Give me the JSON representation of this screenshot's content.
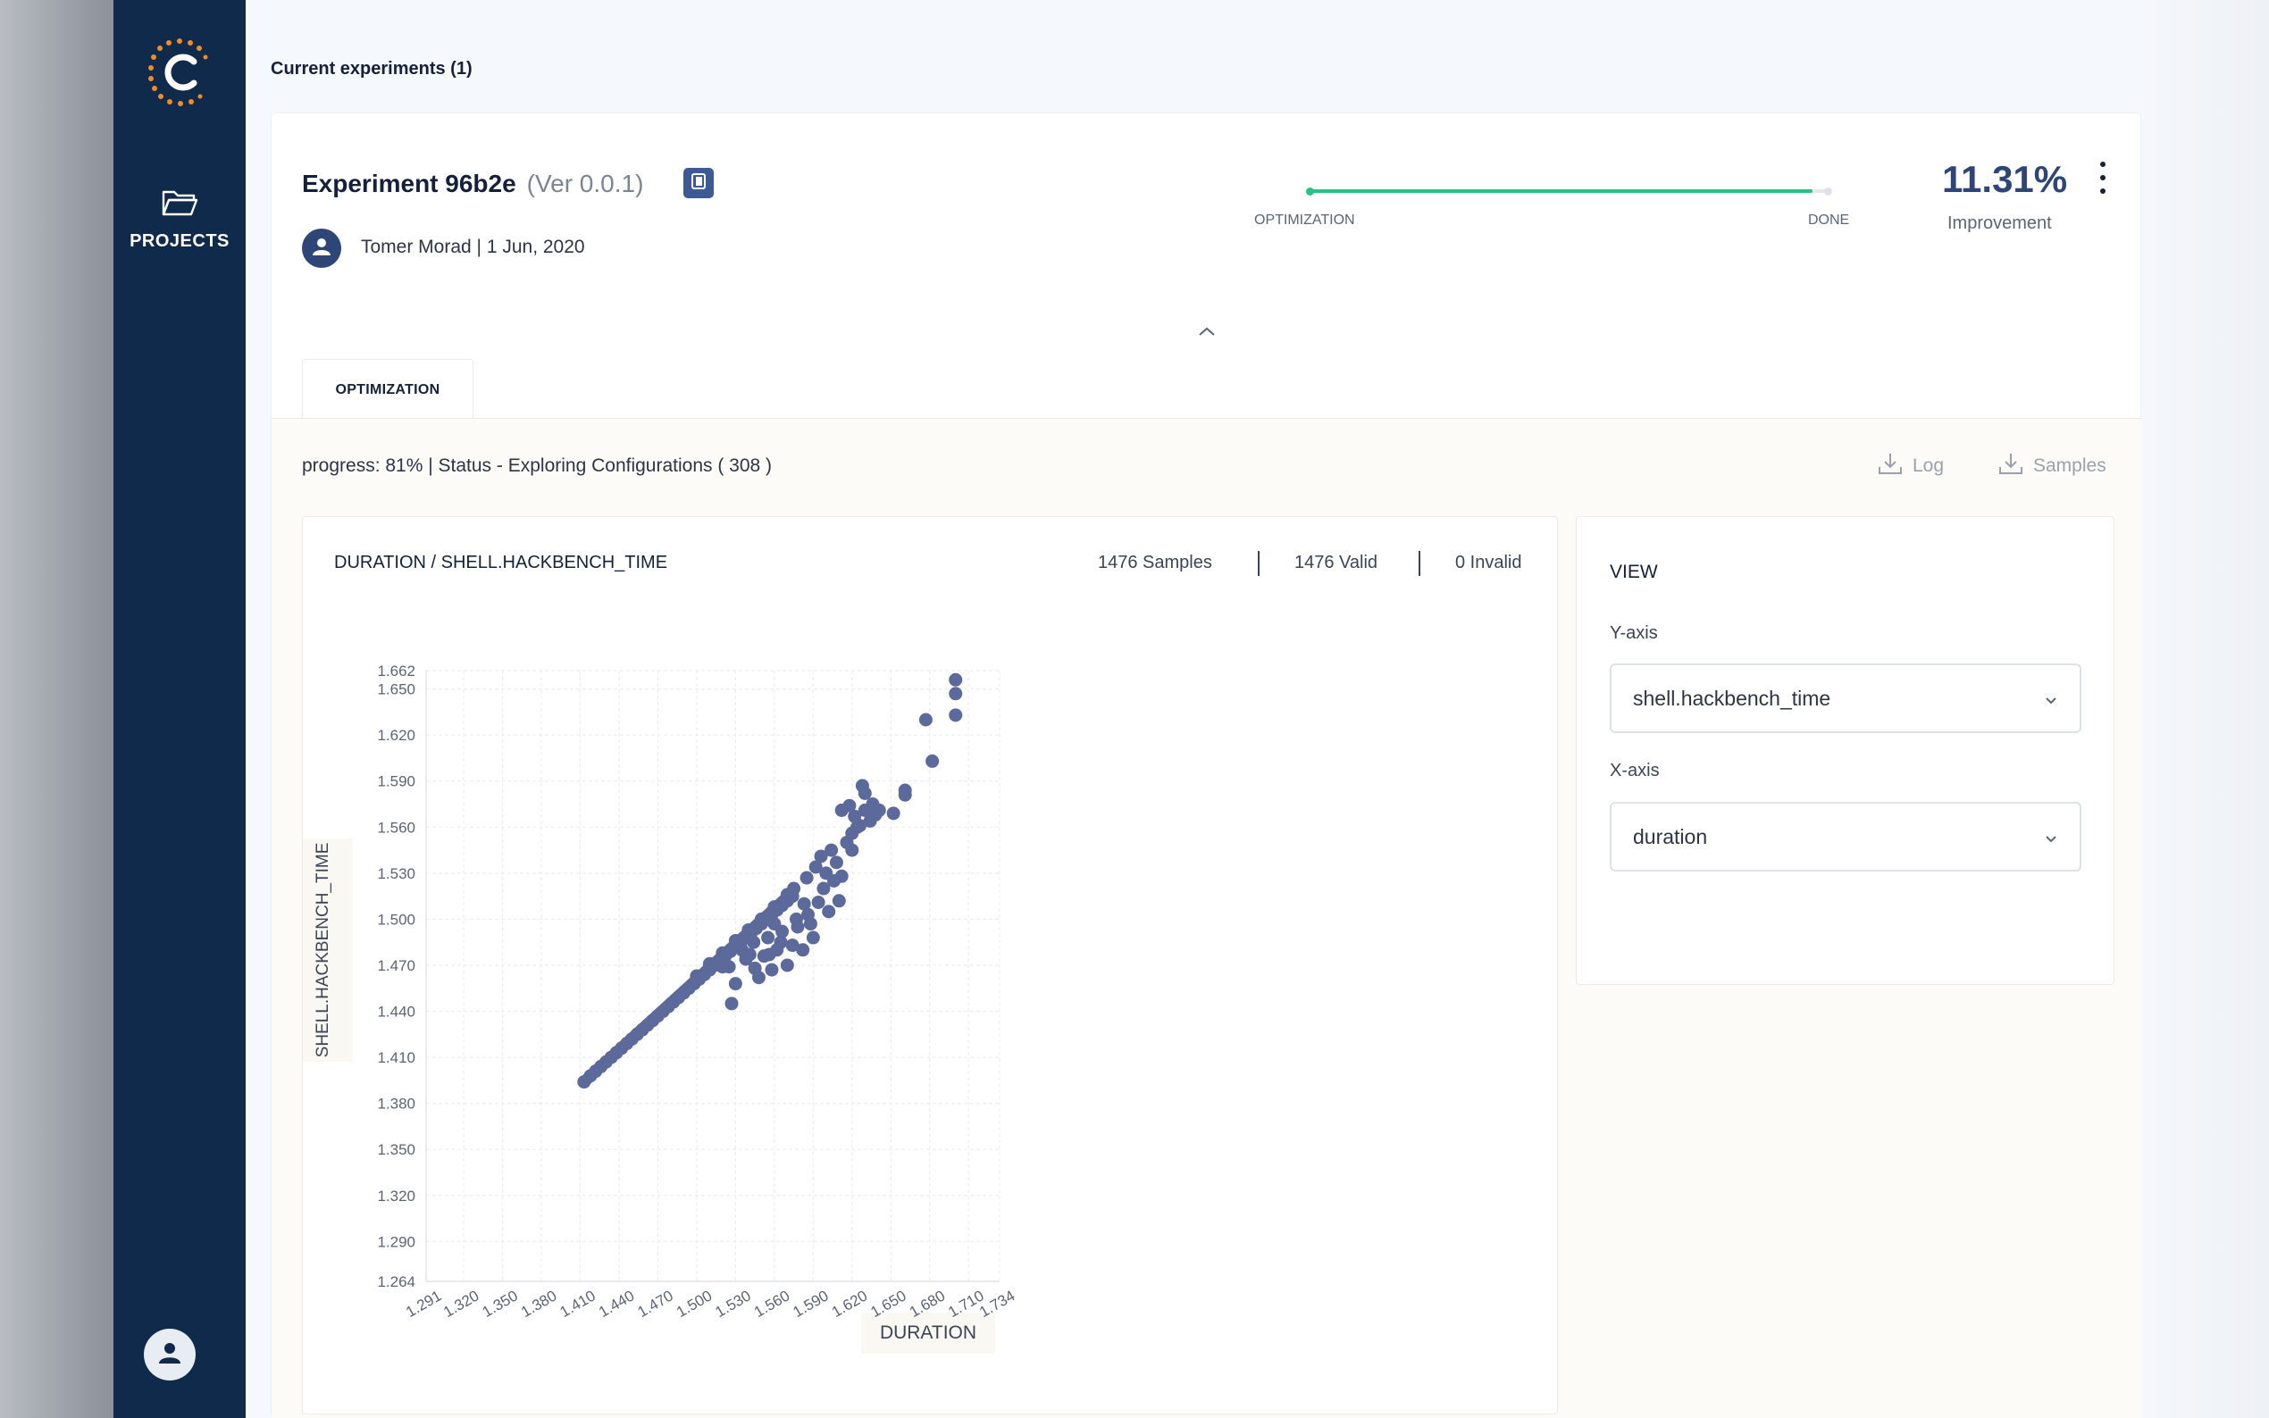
{
  "sidebar": {
    "nav": [
      {
        "label": "PROJECTS",
        "icon": "folder-icon"
      }
    ],
    "user_icon": "user-icon",
    "logo_icon": "c-logo-icon",
    "colors": {
      "bg": "#0f2a4a",
      "logo_accent": "#f28c28"
    }
  },
  "header": {
    "section_title": "Current experiments (1)"
  },
  "experiment": {
    "name": "Experiment 96b2e",
    "version": "(Ver 0.0.1)",
    "author_line": "Tomer Morad | 1 Jun, 2020",
    "stage_start": "OPTIMIZATION",
    "stage_end": "DONE",
    "stage_progress": 0.97,
    "improvement_value": "11.31%",
    "improvement_label": "Improvement",
    "colors": {
      "progress": "#26c281",
      "primary": "#2d4677"
    }
  },
  "tabs": [
    {
      "label": "OPTIMIZATION",
      "active": true
    }
  ],
  "status": {
    "progress_text": "progress: 81% | Status - Exploring Configurations ( 308 )",
    "log_label": "Log",
    "samples_label": "Samples"
  },
  "chart_panel": {
    "title": "DURATION / SHELL.HACKBENCH_TIME",
    "samples": "1476 Samples",
    "valid": "1476 Valid",
    "invalid": "0 Invalid"
  },
  "view_panel": {
    "title": "VIEW",
    "y_label": "Y-axis",
    "y_value": "shell.hackbench_time",
    "x_label": "X-axis",
    "x_value": "duration"
  },
  "chart_data": {
    "type": "scatter",
    "title": "",
    "xlabel": "DURATION",
    "ylabel": "SHELL.HACKBENCH_TIME",
    "xlim": [
      1.291,
      1.734
    ],
    "ylim": [
      1.264,
      1.662
    ],
    "x_ticks": [
      "1.291",
      "1.320",
      "1.350",
      "1.380",
      "1.410",
      "1.440",
      "1.470",
      "1.500",
      "1.530",
      "1.560",
      "1.590",
      "1.620",
      "1.650",
      "1.680",
      "1.710",
      "1.734"
    ],
    "y_ticks": [
      "1.264",
      "1.290",
      "1.320",
      "1.350",
      "1.380",
      "1.410",
      "1.440",
      "1.470",
      "1.500",
      "1.530",
      "1.560",
      "1.590",
      "1.620",
      "1.650",
      "1.662"
    ],
    "grid": true,
    "point_color": "#5b6a9a",
    "points": [
      {
        "x": 1.413,
        "y": 1.394
      },
      {
        "x": 1.418,
        "y": 1.398
      },
      {
        "x": 1.422,
        "y": 1.401
      },
      {
        "x": 1.426,
        "y": 1.404
      },
      {
        "x": 1.43,
        "y": 1.407
      },
      {
        "x": 1.434,
        "y": 1.41
      },
      {
        "x": 1.438,
        "y": 1.413
      },
      {
        "x": 1.442,
        "y": 1.416
      },
      {
        "x": 1.446,
        "y": 1.419
      },
      {
        "x": 1.45,
        "y": 1.422
      },
      {
        "x": 1.454,
        "y": 1.425
      },
      {
        "x": 1.458,
        "y": 1.428
      },
      {
        "x": 1.462,
        "y": 1.431
      },
      {
        "x": 1.466,
        "y": 1.434
      },
      {
        "x": 1.47,
        "y": 1.437
      },
      {
        "x": 1.474,
        "y": 1.44
      },
      {
        "x": 1.478,
        "y": 1.443
      },
      {
        "x": 1.482,
        "y": 1.446
      },
      {
        "x": 1.486,
        "y": 1.449
      },
      {
        "x": 1.49,
        "y": 1.452
      },
      {
        "x": 1.494,
        "y": 1.455
      },
      {
        "x": 1.498,
        "y": 1.458
      },
      {
        "x": 1.502,
        "y": 1.461
      },
      {
        "x": 1.506,
        "y": 1.464
      },
      {
        "x": 1.51,
        "y": 1.467
      },
      {
        "x": 1.514,
        "y": 1.47
      },
      {
        "x": 1.518,
        "y": 1.473
      },
      {
        "x": 1.522,
        "y": 1.476
      },
      {
        "x": 1.526,
        "y": 1.479
      },
      {
        "x": 1.53,
        "y": 1.482
      },
      {
        "x": 1.534,
        "y": 1.485
      },
      {
        "x": 1.538,
        "y": 1.488
      },
      {
        "x": 1.542,
        "y": 1.491
      },
      {
        "x": 1.546,
        "y": 1.494
      },
      {
        "x": 1.55,
        "y": 1.497
      },
      {
        "x": 1.554,
        "y": 1.5
      },
      {
        "x": 1.558,
        "y": 1.503
      },
      {
        "x": 1.562,
        "y": 1.506
      },
      {
        "x": 1.566,
        "y": 1.509
      },
      {
        "x": 1.57,
        "y": 1.512
      },
      {
        "x": 1.574,
        "y": 1.515
      },
      {
        "x": 1.5,
        "y": 1.463
      },
      {
        "x": 1.51,
        "y": 1.471
      },
      {
        "x": 1.52,
        "y": 1.478
      },
      {
        "x": 1.53,
        "y": 1.486
      },
      {
        "x": 1.54,
        "y": 1.493
      },
      {
        "x": 1.55,
        "y": 1.5
      },
      {
        "x": 1.56,
        "y": 1.508
      },
      {
        "x": 1.57,
        "y": 1.516
      },
      {
        "x": 1.525,
        "y": 1.469
      },
      {
        "x": 1.535,
        "y": 1.48
      },
      {
        "x": 1.53,
        "y": 1.458
      },
      {
        "x": 1.541,
        "y": 1.477
      },
      {
        "x": 1.545,
        "y": 1.468
      },
      {
        "x": 1.548,
        "y": 1.462
      },
      {
        "x": 1.552,
        "y": 1.476
      },
      {
        "x": 1.555,
        "y": 1.488
      },
      {
        "x": 1.558,
        "y": 1.467
      },
      {
        "x": 1.562,
        "y": 1.48
      },
      {
        "x": 1.566,
        "y": 1.492
      },
      {
        "x": 1.57,
        "y": 1.47
      },
      {
        "x": 1.574,
        "y": 1.483
      },
      {
        "x": 1.578,
        "y": 1.495
      },
      {
        "x": 1.582,
        "y": 1.48
      },
      {
        "x": 1.586,
        "y": 1.503
      },
      {
        "x": 1.59,
        "y": 1.488
      },
      {
        "x": 1.594,
        "y": 1.511
      },
      {
        "x": 1.598,
        "y": 1.52
      },
      {
        "x": 1.602,
        "y": 1.505
      },
      {
        "x": 1.606,
        "y": 1.525
      },
      {
        "x": 1.61,
        "y": 1.512
      },
      {
        "x": 1.56,
        "y": 1.497
      },
      {
        "x": 1.575,
        "y": 1.52
      },
      {
        "x": 1.585,
        "y": 1.527
      },
      {
        "x": 1.592,
        "y": 1.534
      },
      {
        "x": 1.6,
        "y": 1.53
      },
      {
        "x": 1.608,
        "y": 1.537
      },
      {
        "x": 1.596,
        "y": 1.541
      },
      {
        "x": 1.604,
        "y": 1.545
      },
      {
        "x": 1.612,
        "y": 1.528
      },
      {
        "x": 1.616,
        "y": 1.55
      },
      {
        "x": 1.62,
        "y": 1.556
      },
      {
        "x": 1.622,
        "y": 1.567
      },
      {
        "x": 1.626,
        "y": 1.561
      },
      {
        "x": 1.63,
        "y": 1.571
      },
      {
        "x": 1.634,
        "y": 1.564
      },
      {
        "x": 1.628,
        "y": 1.587
      },
      {
        "x": 1.638,
        "y": 1.568
      },
      {
        "x": 1.612,
        "y": 1.571
      },
      {
        "x": 1.618,
        "y": 1.574
      },
      {
        "x": 1.62,
        "y": 1.545
      },
      {
        "x": 1.624,
        "y": 1.56
      },
      {
        "x": 1.63,
        "y": 1.582
      },
      {
        "x": 1.636,
        "y": 1.575
      },
      {
        "x": 1.641,
        "y": 1.571
      },
      {
        "x": 1.652,
        "y": 1.569
      },
      {
        "x": 1.661,
        "y": 1.581
      },
      {
        "x": 1.661,
        "y": 1.584
      },
      {
        "x": 1.677,
        "y": 1.63
      },
      {
        "x": 1.682,
        "y": 1.603
      },
      {
        "x": 1.7,
        "y": 1.656
      },
      {
        "x": 1.7,
        "y": 1.647
      },
      {
        "x": 1.7,
        "y": 1.633
      },
      {
        "x": 1.51,
        "y": 1.47
      },
      {
        "x": 1.527,
        "y": 1.445
      },
      {
        "x": 1.52,
        "y": 1.469
      },
      {
        "x": 1.538,
        "y": 1.474
      },
      {
        "x": 1.544,
        "y": 1.485
      },
      {
        "x": 1.556,
        "y": 1.477
      },
      {
        "x": 1.565,
        "y": 1.485
      },
      {
        "x": 1.577,
        "y": 1.5
      },
      {
        "x": 1.583,
        "y": 1.51
      },
      {
        "x": 1.588,
        "y": 1.497
      }
    ]
  }
}
